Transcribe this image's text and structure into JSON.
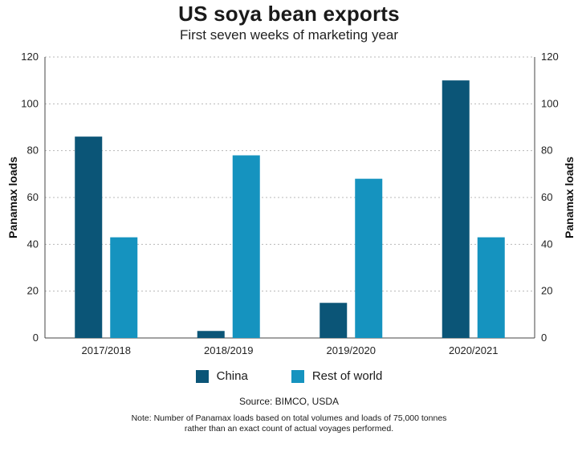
{
  "chart_data": {
    "type": "bar",
    "title": "US soya bean exports",
    "subtitle": "First seven weeks of marketing year",
    "ylabel": "Panamax loads",
    "ylim": [
      0,
      120
    ],
    "yticks": [
      0,
      20,
      40,
      60,
      80,
      100,
      120
    ],
    "grid": true,
    "categories": [
      "2017/2018",
      "2018/2019",
      "2019/2020",
      "2020/2021"
    ],
    "series": [
      {
        "name": "China",
        "color": "#0b5577",
        "values": [
          86,
          3,
          15,
          110
        ]
      },
      {
        "name": "Rest of world",
        "color": "#1593bf",
        "values": [
          43,
          78,
          68,
          43
        ]
      }
    ],
    "legend_position": "bottom",
    "source": "Source: BIMCO, USDA",
    "note_lines": [
      "Note: Number of Panamax loads based on total volumes and loads of 75,000 tonnes",
      "rather than an exact count of actual voyages performed."
    ]
  }
}
